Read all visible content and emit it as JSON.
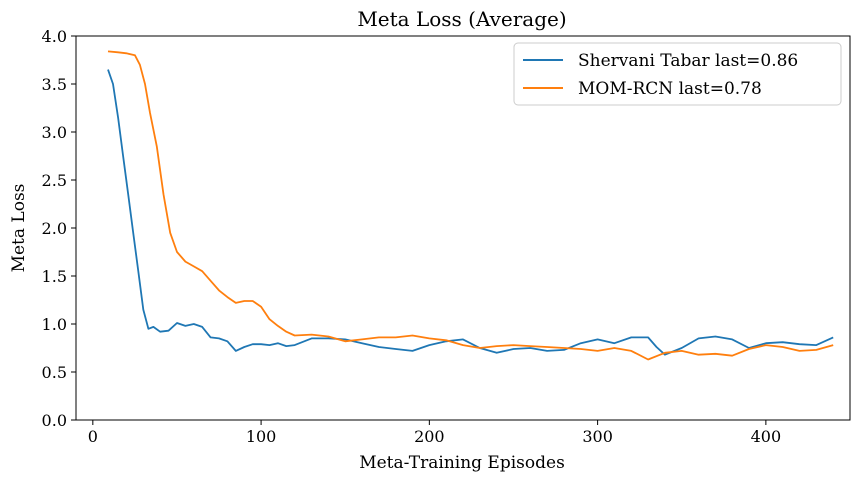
{
  "chart_data": {
    "type": "line",
    "title": "Meta Loss (Average)",
    "xlabel": "Meta-Training Episodes",
    "ylabel": "Meta Loss",
    "xlim": [
      -10,
      450
    ],
    "ylim": [
      0,
      4.0
    ],
    "xticks": [
      0,
      100,
      200,
      300,
      400
    ],
    "xtick_labels": [
      "0",
      "100",
      "200",
      "300",
      "400"
    ],
    "yticks": [
      0,
      0.5,
      1.0,
      1.5,
      2.0,
      2.5,
      3.0,
      3.5,
      4.0
    ],
    "ytick_labels": [
      "0.0",
      "0.5",
      "1.0",
      "1.5",
      "2.0",
      "2.5",
      "3.0",
      "3.5",
      "4.0"
    ],
    "grid": false,
    "legend_position": "top-right",
    "series": [
      {
        "name": "Shervani Tabar last=0.86",
        "color": "#1f77b4",
        "x": [
          9,
          12,
          15,
          18,
          21,
          24,
          27,
          30,
          33,
          36,
          40,
          45,
          50,
          55,
          60,
          65,
          70,
          75,
          80,
          85,
          90,
          95,
          100,
          105,
          110,
          115,
          120,
          130,
          140,
          150,
          160,
          170,
          180,
          190,
          200,
          210,
          220,
          230,
          240,
          250,
          260,
          270,
          280,
          290,
          300,
          310,
          320,
          330,
          335,
          340,
          350,
          360,
          370,
          380,
          390,
          400,
          410,
          420,
          430,
          440
        ],
        "values": [
          3.65,
          3.5,
          3.15,
          2.75,
          2.35,
          1.95,
          1.55,
          1.15,
          0.95,
          0.97,
          0.92,
          0.93,
          1.01,
          0.98,
          1.0,
          0.97,
          0.86,
          0.85,
          0.82,
          0.72,
          0.76,
          0.79,
          0.79,
          0.78,
          0.8,
          0.77,
          0.78,
          0.85,
          0.85,
          0.84,
          0.8,
          0.76,
          0.74,
          0.72,
          0.78,
          0.82,
          0.84,
          0.75,
          0.7,
          0.74,
          0.75,
          0.72,
          0.73,
          0.8,
          0.84,
          0.8,
          0.86,
          0.86,
          0.76,
          0.68,
          0.75,
          0.85,
          0.87,
          0.84,
          0.75,
          0.8,
          0.81,
          0.79,
          0.78,
          0.86
        ]
      },
      {
        "name": "MOM-RCN last=0.78",
        "color": "#ff7f0e",
        "x": [
          9,
          15,
          20,
          25,
          28,
          31,
          34,
          38,
          42,
          46,
          50,
          55,
          60,
          65,
          70,
          75,
          80,
          85,
          90,
          95,
          100,
          105,
          110,
          115,
          120,
          130,
          140,
          150,
          160,
          170,
          180,
          190,
          200,
          210,
          220,
          230,
          240,
          250,
          260,
          270,
          280,
          290,
          300,
          310,
          320,
          330,
          340,
          350,
          360,
          370,
          380,
          390,
          400,
          410,
          420,
          430,
          440
        ],
        "values": [
          3.84,
          3.83,
          3.82,
          3.8,
          3.7,
          3.5,
          3.2,
          2.85,
          2.35,
          1.95,
          1.75,
          1.65,
          1.6,
          1.55,
          1.45,
          1.35,
          1.28,
          1.22,
          1.24,
          1.24,
          1.18,
          1.05,
          0.98,
          0.92,
          0.88,
          0.89,
          0.87,
          0.82,
          0.84,
          0.86,
          0.86,
          0.88,
          0.85,
          0.83,
          0.78,
          0.75,
          0.77,
          0.78,
          0.77,
          0.76,
          0.75,
          0.74,
          0.72,
          0.75,
          0.72,
          0.63,
          0.7,
          0.72,
          0.68,
          0.69,
          0.67,
          0.74,
          0.78,
          0.76,
          0.72,
          0.73,
          0.78
        ]
      }
    ]
  }
}
